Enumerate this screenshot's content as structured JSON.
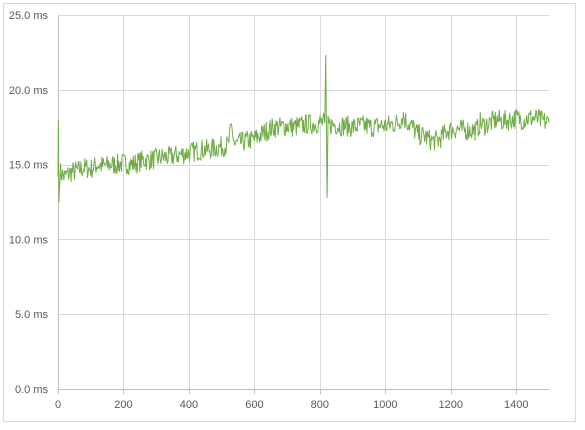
{
  "chart_data": {
    "type": "line",
    "title": "",
    "xlabel": "",
    "ylabel": "",
    "xlim": [
      0,
      1500
    ],
    "ylim": [
      0,
      25
    ],
    "x_ticks": [
      0,
      200,
      400,
      600,
      800,
      1000,
      1200,
      1400
    ],
    "x_tick_labels": [
      "0",
      "200",
      "400",
      "600",
      "800",
      "1000",
      "1200",
      "1400"
    ],
    "y_ticks": [
      0,
      5,
      10,
      15,
      20,
      25
    ],
    "y_tick_labels": [
      "0.0 ms",
      "5.0 ms",
      "10.0 ms",
      "15.0 ms",
      "20.0 ms",
      "25.0 ms"
    ],
    "grid": true,
    "legend": "none",
    "colors": {
      "series": "#70ad47",
      "grid": "#d9d9d9",
      "axis": "#bfbfbf",
      "text": "#595959"
    },
    "series": [
      {
        "values": [
          [
            0,
            14.2
          ],
          [
            1,
            18.0
          ],
          [
            3,
            12.5
          ],
          [
            6,
            14.5
          ],
          [
            20,
            14.2
          ],
          [
            40,
            14.5
          ],
          [
            60,
            14.6
          ],
          [
            80,
            14.8
          ],
          [
            100,
            14.7
          ],
          [
            120,
            15.0
          ],
          [
            140,
            14.9
          ],
          [
            160,
            15.0
          ],
          [
            180,
            15.0
          ],
          [
            200,
            15.1
          ],
          [
            220,
            15.0
          ],
          [
            240,
            15.1
          ],
          [
            260,
            15.3
          ],
          [
            280,
            15.3
          ],
          [
            300,
            15.4
          ],
          [
            320,
            15.5
          ],
          [
            340,
            15.5
          ],
          [
            360,
            15.6
          ],
          [
            380,
            15.7
          ],
          [
            400,
            15.8
          ],
          [
            420,
            15.9
          ],
          [
            440,
            16.0
          ],
          [
            460,
            16.0
          ],
          [
            480,
            16.1
          ],
          [
            500,
            16.2
          ],
          [
            520,
            16.3
          ],
          [
            530,
            17.5
          ],
          [
            540,
            16.3
          ],
          [
            560,
            16.5
          ],
          [
            580,
            16.6
          ],
          [
            600,
            16.7
          ],
          [
            620,
            17.0
          ],
          [
            640,
            17.3
          ],
          [
            660,
            17.5
          ],
          [
            680,
            17.5
          ],
          [
            700,
            17.6
          ],
          [
            720,
            17.5
          ],
          [
            740,
            17.6
          ],
          [
            760,
            17.7
          ],
          [
            780,
            17.7
          ],
          [
            800,
            17.8
          ],
          [
            815,
            17.8
          ],
          [
            818,
            22.3
          ],
          [
            820,
            17.8
          ],
          [
            822,
            12.8
          ],
          [
            825,
            17.6
          ],
          [
            840,
            17.7
          ],
          [
            860,
            17.6
          ],
          [
            880,
            17.6
          ],
          [
            900,
            17.5
          ],
          [
            920,
            17.6
          ],
          [
            940,
            17.6
          ],
          [
            960,
            17.5
          ],
          [
            980,
            17.6
          ],
          [
            1000,
            17.6
          ],
          [
            1020,
            17.7
          ],
          [
            1040,
            17.8
          ],
          [
            1055,
            18.3
          ],
          [
            1060,
            18.0
          ],
          [
            1080,
            17.6
          ],
          [
            1100,
            17.0
          ],
          [
            1120,
            16.9
          ],
          [
            1140,
            16.6
          ],
          [
            1160,
            16.6
          ],
          [
            1175,
            16.9
          ],
          [
            1190,
            17.3
          ],
          [
            1200,
            17.3
          ],
          [
            1220,
            17.4
          ],
          [
            1240,
            17.3
          ],
          [
            1260,
            17.3
          ],
          [
            1280,
            17.3
          ],
          [
            1290,
            17.8
          ],
          [
            1300,
            17.6
          ],
          [
            1320,
            17.8
          ],
          [
            1340,
            18.0
          ],
          [
            1360,
            17.9
          ],
          [
            1380,
            18.0
          ],
          [
            1400,
            18.1
          ],
          [
            1420,
            18.0
          ],
          [
            1440,
            18.1
          ],
          [
            1460,
            18.1
          ],
          [
            1480,
            17.9
          ],
          [
            1500,
            17.8
          ]
        ]
      }
    ]
  }
}
